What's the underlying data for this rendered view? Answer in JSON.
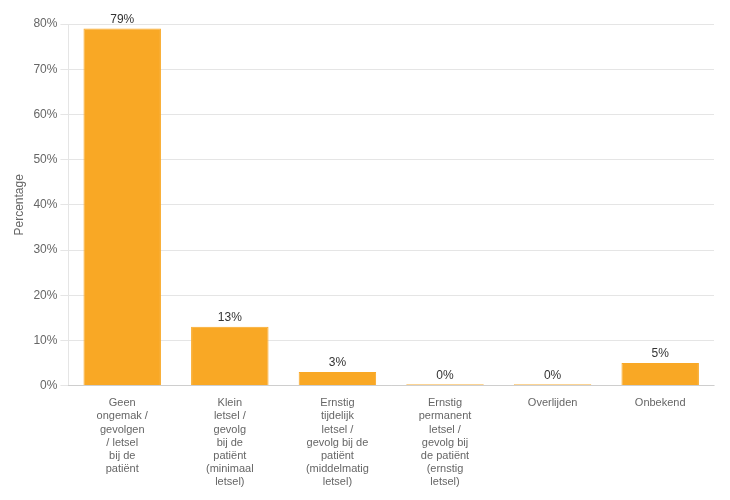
{
  "chart_data": {
    "type": "bar",
    "categories": [
      "Geen\nongemak /\ngevolgen\n/ letsel\nbij de\npatiënt",
      "Klein\nletsel /\ngevolg\nbij de\npatiënt\n(minimaal\nletsel)",
      "Ernstig\ntijdelijk\nletsel /\ngevolg bij de\npatiënt\n(middelmatig\nletsel)",
      "Ernstig\npermanent\nletsel /\ngevolg bij\nde patiënt\n(ernstig\nletsel)",
      "Overlijden",
      "Onbekend"
    ],
    "values": [
      79,
      13,
      3,
      0.3,
      0.3,
      5
    ],
    "value_labels": [
      "79%",
      "13%",
      "3%",
      "0%",
      "0%",
      "5%"
    ],
    "data_labels": true,
    "color": "#f9a825",
    "ylabel": "Percentage",
    "ylim": [
      0,
      80
    ],
    "yticks": [
      {
        "value": 0,
        "label": "0%"
      },
      {
        "value": 10,
        "label": "10%"
      },
      {
        "value": 20,
        "label": "20%"
      },
      {
        "value": 30,
        "label": "30%"
      },
      {
        "value": 40,
        "label": "40%"
      },
      {
        "value": 50,
        "label": "50%"
      },
      {
        "value": 60,
        "label": "60%"
      },
      {
        "value": 70,
        "label": "70%"
      },
      {
        "value": 80,
        "label": "80%"
      }
    ],
    "grid": true
  }
}
